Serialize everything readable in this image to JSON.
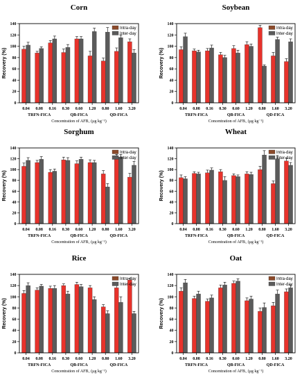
{
  "colors": {
    "intra": "#e8322b",
    "inter": "#5b5b5b",
    "intra_legend": "#8b4a2a",
    "error": "#000000"
  },
  "legend": [
    "Intra-day",
    "Inter-day"
  ],
  "chart_data": [
    {
      "type": "bar",
      "title": "Corn",
      "ylabel": "Recovery (%)",
      "xlabel": "Concentration of AFB₁ (μg kg⁻¹)",
      "categories": [
        "0.04",
        "0.08",
        "0.16",
        "0.30",
        "0.60",
        "1.20",
        "0.80",
        "1.60",
        "3.20"
      ],
      "groups": [
        "TRFN-FICA",
        "QB-FICA",
        "QD-FICA"
      ],
      "ylim": [
        0,
        140
      ],
      "yticks": [
        0,
        20,
        40,
        60,
        80,
        100,
        120,
        140
      ],
      "series": [
        {
          "name": "Intra-day",
          "values": [
            95,
            88,
            106,
            89,
            113,
            83,
            74,
            91,
            108
          ],
          "errors": [
            5,
            3,
            4,
            6,
            4,
            8,
            5,
            6,
            5
          ]
        },
        {
          "name": "Inter-day",
          "values": [
            102,
            96,
            113,
            98,
            113,
            126,
            125,
            115,
            88
          ],
          "errors": [
            5,
            3,
            5,
            5,
            4,
            6,
            8,
            5,
            6
          ]
        }
      ]
    },
    {
      "type": "bar",
      "title": "Soybean",
      "ylabel": "Recovery (%)",
      "xlabel": "Concentration of AFB₁ (μg kg⁻¹)",
      "categories": [
        "0.04",
        "0.08",
        "0.16",
        "0.30",
        "0.60",
        "1.20",
        "0.80",
        "1.60",
        "3.20"
      ],
      "groups": [
        "TRFN-FICA",
        "QB-FICA",
        "QD-FICA"
      ],
      "ylim": [
        0,
        140
      ],
      "yticks": [
        0,
        20,
        40,
        60,
        80,
        100,
        120,
        140
      ],
      "series": [
        {
          "name": "Intra-day",
          "values": [
            94,
            92,
            92,
            85,
            96,
            103,
            133,
            83,
            73
          ],
          "errors": [
            5,
            3,
            4,
            4,
            5,
            5,
            4,
            6,
            5
          ]
        },
        {
          "name": "Inter-day",
          "values": [
            117,
            90,
            97,
            80,
            88,
            100,
            65,
            112,
            108
          ],
          "errors": [
            6,
            3,
            5,
            4,
            5,
            4,
            2,
            4,
            5
          ]
        }
      ]
    },
    {
      "type": "bar",
      "title": "Sorghum",
      "ylabel": "Recovery (%)",
      "xlabel": "Concentration of AFB₁ (μg kg⁻¹)",
      "categories": [
        "0.04",
        "0.08",
        "0.16",
        "0.30",
        "0.60",
        "1.20",
        "0.80",
        "1.60",
        "3.20"
      ],
      "groups": [
        "TRFN-FICA",
        "QB-FICA",
        "QD-FICA"
      ],
      "ylim": [
        0,
        140
      ],
      "yticks": [
        0,
        20,
        40,
        60,
        80,
        100,
        120,
        140
      ],
      "series": [
        {
          "name": "Intra-day",
          "values": [
            106,
            113,
            95,
            118,
            111,
            113,
            92,
            124,
            86
          ],
          "errors": [
            6,
            4,
            5,
            5,
            5,
            5,
            6,
            4,
            7
          ]
        },
        {
          "name": "Inter-day",
          "values": [
            117,
            119,
            97,
            117,
            119,
            113,
            68,
            123,
            108
          ],
          "errors": [
            5,
            5,
            4,
            5,
            4,
            4,
            6,
            5,
            7
          ]
        }
      ]
    },
    {
      "type": "bar",
      "title": "Wheat",
      "ylabel": "Recovery (%)",
      "xlabel": "Concentration of AFB₁ (μg kg⁻¹)",
      "categories": [
        "0.04",
        "0.08",
        "0.16",
        "0.30",
        "0.60",
        "1.20",
        "0.80",
        "1.60",
        "3.20"
      ],
      "groups": [
        "TRFN-FICA",
        "QB-FICA",
        "QD-FICA"
      ],
      "ylim": [
        0,
        140
      ],
      "yticks": [
        0,
        20,
        40,
        60,
        80,
        100,
        120,
        140
      ],
      "series": [
        {
          "name": "Intra-day",
          "values": [
            85,
            93,
            94,
            96,
            89,
            92,
            100,
            74,
            116
          ],
          "errors": [
            5,
            3,
            5,
            4,
            3,
            4,
            6,
            5,
            5
          ]
        },
        {
          "name": "Inter-day",
          "values": [
            83,
            92,
            99,
            80,
            87,
            91,
            127,
            120,
            108
          ],
          "errors": [
            4,
            3,
            4,
            7,
            3,
            4,
            8,
            6,
            5
          ]
        }
      ]
    },
    {
      "type": "bar",
      "title": "Rice",
      "ylabel": "Recovery (%)",
      "xlabel": "Concentration of AFB₁ (μg kg⁻¹)",
      "categories": [
        "0.04",
        "0.08",
        "0.16",
        "0.30",
        "0.60",
        "1.20",
        "0.80",
        "1.60",
        "3.20"
      ],
      "groups": [
        "TRFN-FICA",
        "QB-FICA",
        "QD-FICA"
      ],
      "ylim": [
        0,
        140
      ],
      "yticks": [
        0,
        20,
        40,
        60,
        80,
        100,
        120,
        140
      ],
      "series": [
        {
          "name": "Intra-day",
          "values": [
            106,
            112,
            115,
            120,
            122,
            116,
            82,
            116,
            130
          ],
          "errors": [
            5,
            4,
            4,
            3,
            4,
            4,
            4,
            5,
            3
          ]
        },
        {
          "name": "Inter-day",
          "values": [
            120,
            119,
            115,
            105,
            118,
            95,
            70,
            90,
            70
          ],
          "errors": [
            5,
            3,
            5,
            5,
            4,
            5,
            5,
            10,
            4
          ]
        }
      ]
    },
    {
      "type": "bar",
      "title": "Oat",
      "ylabel": "Recovery (%)",
      "xlabel": "Concentration of AFB₁ (μg kg⁻¹)",
      "categories": [
        "0.04",
        "0.08",
        "0.16",
        "0.30",
        "0.60",
        "1.20",
        "0.80",
        "1.60",
        "3.20"
      ],
      "groups": [
        "TRFN-FICA",
        "QB-FICA",
        "QD-FICA"
      ],
      "ylim": [
        0,
        140
      ],
      "yticks": [
        0,
        20,
        40,
        60,
        80,
        100,
        120,
        140
      ],
      "series": [
        {
          "name": "Intra-day",
          "values": [
            110,
            97,
            92,
            116,
            124,
            93,
            74,
            84,
            109
          ],
          "errors": [
            6,
            4,
            4,
            5,
            4,
            5,
            6,
            6,
            5
          ]
        },
        {
          "name": "Inter-day",
          "values": [
            125,
            105,
            98,
            121,
            128,
            96,
            81,
            105,
            116
          ],
          "errors": [
            6,
            5,
            5,
            5,
            4,
            5,
            8,
            7,
            5
          ]
        }
      ]
    }
  ]
}
